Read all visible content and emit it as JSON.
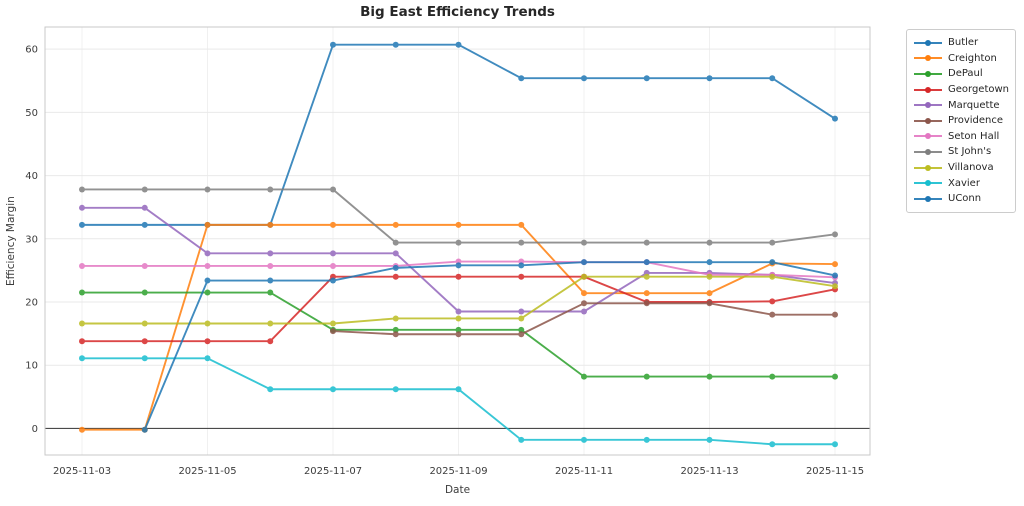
{
  "figure": {
    "background": "#ffffff",
    "grid_color": "#e9e9e9",
    "spine_color": "#c9c9c9",
    "zero_line_color": "#4a4a4a",
    "tick_text_color": "#3c3c3c"
  },
  "chart_data": {
    "type": "line",
    "title": "Big East Efficiency Trends",
    "xlabel": "Date",
    "ylabel": "Efficiency Margin",
    "x": [
      "2025-11-03",
      "2025-11-04",
      "2025-11-05",
      "2025-11-06",
      "2025-11-07",
      "2025-11-08",
      "2025-11-09",
      "2025-11-10",
      "2025-11-11",
      "2025-11-12",
      "2025-11-13",
      "2025-11-14",
      "2025-11-15"
    ],
    "x_tick_labels": [
      "2025-11-03",
      "2025-11-05",
      "2025-11-07",
      "2025-11-09",
      "2025-11-11",
      "2025-11-13",
      "2025-11-15"
    ],
    "x_tick_indices": [
      0,
      2,
      4,
      6,
      8,
      10,
      12
    ],
    "y_ticks": [
      0,
      10,
      20,
      30,
      40,
      50,
      60
    ],
    "ylim": [
      -4.2,
      63.5
    ],
    "grid": true,
    "zero_line": true,
    "legend_position": "outside-right",
    "marker": "circle",
    "series": [
      {
        "name": "Butler",
        "color": "#1f77b4",
        "values": [
          32.2,
          32.2,
          32.2,
          32.2,
          60.7,
          60.7,
          60.7,
          55.4,
          55.4,
          55.4,
          55.4,
          55.4,
          49.0
        ]
      },
      {
        "name": "Creighton",
        "color": "#ff7f0e",
        "values": [
          -0.2,
          -0.2,
          32.2,
          32.2,
          32.2,
          32.2,
          32.2,
          32.2,
          21.4,
          21.4,
          21.4,
          26.1,
          26.0
        ]
      },
      {
        "name": "DePaul",
        "color": "#2ca02c",
        "values": [
          21.5,
          21.5,
          21.5,
          21.5,
          15.6,
          15.6,
          15.6,
          15.6,
          8.2,
          8.2,
          8.2,
          8.2,
          8.2
        ]
      },
      {
        "name": "Georgetown",
        "color": "#d62728",
        "values": [
          13.8,
          13.8,
          13.8,
          13.8,
          24.0,
          24.0,
          24.0,
          24.0,
          24.0,
          20.0,
          20.0,
          20.1,
          22.0
        ]
      },
      {
        "name": "Marquette",
        "color": "#9467bd",
        "values": [
          34.9,
          34.9,
          27.7,
          27.7,
          27.7,
          27.7,
          18.5,
          18.5,
          18.5,
          24.6,
          24.6,
          24.3,
          23.0
        ]
      },
      {
        "name": "Providence",
        "color": "#8c564b",
        "values": [
          null,
          null,
          null,
          null,
          15.4,
          14.9,
          14.9,
          14.9,
          19.8,
          19.8,
          19.8,
          18.0,
          18.0
        ]
      },
      {
        "name": "Seton Hall",
        "color": "#e377c2",
        "values": [
          25.7,
          25.7,
          25.7,
          25.7,
          25.7,
          25.7,
          26.4,
          26.4,
          26.3,
          26.3,
          24.3,
          24.3,
          23.9
        ]
      },
      {
        "name": "St John's",
        "color": "#7f7f7f",
        "values": [
          37.8,
          37.8,
          37.8,
          37.8,
          37.8,
          29.4,
          29.4,
          29.4,
          29.4,
          29.4,
          29.4,
          29.4,
          30.7
        ]
      },
      {
        "name": "Villanova",
        "color": "#bcbd22",
        "values": [
          16.6,
          16.6,
          16.6,
          16.6,
          16.6,
          17.4,
          17.4,
          17.4,
          24.0,
          24.0,
          24.0,
          24.0,
          22.5
        ]
      },
      {
        "name": "Xavier",
        "color": "#17becf",
        "values": [
          11.1,
          11.1,
          11.1,
          6.2,
          6.2,
          6.2,
          6.2,
          -1.8,
          -1.8,
          -1.8,
          -1.8,
          -2.5,
          -2.5
        ]
      },
      {
        "name": "UConn",
        "color": "#1f77b4",
        "values": [
          null,
          -0.2,
          23.4,
          23.4,
          23.4,
          25.4,
          25.8,
          25.8,
          26.3,
          26.3,
          26.3,
          26.3,
          24.2
        ]
      }
    ]
  }
}
